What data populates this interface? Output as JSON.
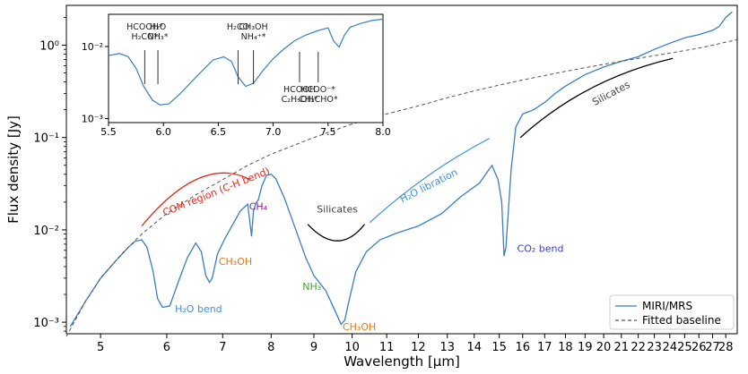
{
  "chart_data": {
    "type": "line",
    "xlabel": "Wavelength [μm]",
    "ylabel": "Flux density [Jy]",
    "xscale": "log",
    "yscale": "log",
    "xlim": [
      4.55,
      28.9
    ],
    "ylim": [
      0.00075,
      2.7
    ],
    "x_ticks": [
      5,
      6,
      7,
      8,
      9,
      10,
      11,
      12,
      13,
      14,
      15,
      16,
      17,
      18,
      19,
      20,
      21,
      22,
      23,
      24,
      25,
      26,
      27,
      28
    ],
    "y_ticks": [
      {
        "value": 0.001,
        "label": "10⁻³"
      },
      {
        "value": 0.01,
        "label": "10⁻²"
      },
      {
        "value": 0.1,
        "label": "10⁻¹"
      },
      {
        "value": 1,
        "label": "10⁰"
      }
    ],
    "legend": {
      "position": "lower-right",
      "entries": [
        {
          "label": "MIRI/MRS",
          "color": "#3a7ebf",
          "style": "solid"
        },
        {
          "label": "Fitted baseline",
          "color": "#555555",
          "style": "dashed"
        }
      ]
    },
    "series": [
      {
        "name": "MIRI/MRS",
        "color": "#3a7ebf",
        "x": [
          4.6,
          4.8,
          5.0,
          5.2,
          5.4,
          5.5,
          5.6,
          5.68,
          5.78,
          5.85,
          5.93,
          6.05,
          6.2,
          6.35,
          6.5,
          6.6,
          6.68,
          6.75,
          6.8,
          6.9,
          7.05,
          7.2,
          7.35,
          7.5,
          7.58,
          7.62,
          7.67,
          7.72,
          7.8,
          7.9,
          8.0,
          8.1,
          8.3,
          8.5,
          8.8,
          9.0,
          9.3,
          9.55,
          9.7,
          9.8,
          9.9,
          10.1,
          10.4,
          10.8,
          11.3,
          12.0,
          12.8,
          13.5,
          14.2,
          14.7,
          14.95,
          15.1,
          15.2,
          15.28,
          15.5,
          15.7,
          16.0,
          16.5,
          17.0,
          17.5,
          18.0,
          19.0,
          20.0,
          21.0,
          22.0,
          23.0,
          24.0,
          25.0,
          26.0,
          27.0,
          27.5,
          28.0,
          28.5
        ],
        "y": [
          0.0009,
          0.0017,
          0.003,
          0.0045,
          0.0065,
          0.0075,
          0.0078,
          0.0065,
          0.0035,
          0.0018,
          0.00145,
          0.0015,
          0.0028,
          0.005,
          0.0072,
          0.0058,
          0.0032,
          0.0027,
          0.003,
          0.0055,
          0.0082,
          0.0115,
          0.016,
          0.019,
          0.0085,
          0.016,
          0.0195,
          0.021,
          0.03,
          0.039,
          0.04,
          0.036,
          0.022,
          0.012,
          0.005,
          0.0032,
          0.0022,
          0.0013,
          0.00095,
          0.00105,
          0.0016,
          0.0035,
          0.0058,
          0.0078,
          0.0092,
          0.011,
          0.015,
          0.023,
          0.032,
          0.05,
          0.035,
          0.02,
          0.0052,
          0.0065,
          0.045,
          0.13,
          0.18,
          0.2,
          0.24,
          0.3,
          0.36,
          0.48,
          0.58,
          0.67,
          0.75,
          0.9,
          1.05,
          1.2,
          1.3,
          1.45,
          1.6,
          2.0,
          2.3
        ]
      },
      {
        "name": "Fitted baseline",
        "color": "#555555",
        "dash": true,
        "x": [
          4.55,
          4.8,
          5.0,
          5.3,
          5.6,
          6.0,
          6.5,
          7.0,
          7.5,
          8.0,
          9.0,
          10.0,
          11.0,
          12.0,
          13.0,
          14.0,
          15.0,
          16.0,
          18.0,
          20.0,
          22.0,
          24.0,
          26.0,
          27.0,
          28.0,
          28.9
        ],
        "y": [
          0.0007,
          0.0017,
          0.003,
          0.0055,
          0.009,
          0.015,
          0.024,
          0.035,
          0.05,
          0.066,
          0.1,
          0.14,
          0.18,
          0.22,
          0.27,
          0.32,
          0.37,
          0.42,
          0.52,
          0.62,
          0.72,
          0.82,
          0.93,
          1.0,
          1.08,
          1.15
        ]
      }
    ],
    "annotations": [
      {
        "text": "H₂O bend",
        "x": 6.55,
        "y": 0.00128,
        "color": "#3c8fde"
      },
      {
        "text": "CH₃OH",
        "x": 7.25,
        "y": 0.0042,
        "color": "#e07a10"
      },
      {
        "text": "CH₄",
        "x": 7.72,
        "y": 0.0165,
        "color": "#8b1a8b"
      },
      {
        "text": "NH₃",
        "x": 8.95,
        "y": 0.00225,
        "color": "#3fa531"
      },
      {
        "text": "CH₃OH",
        "x": 10.2,
        "y": 0.00082,
        "color": "#e07a10"
      },
      {
        "text": "CO₂ bend",
        "x": 16.8,
        "y": 0.0058,
        "color": "#3a3fbf"
      },
      {
        "text": "Silicates",
        "x": 9.6,
        "y": 0.0155,
        "color": "#444444"
      },
      {
        "text": "Silicates",
        "x": 20.5,
        "y": 0.28,
        "color": "#444444"
      },
      {
        "text": "H₂O libration",
        "x": 12.4,
        "y": 0.028,
        "color": "#3c8fde"
      },
      {
        "text": "COM region (C-H  bend)",
        "x": 6.9,
        "y": 0.024,
        "color": "#e0281e"
      }
    ],
    "inset": {
      "xlim": [
        5.5,
        8.0
      ],
      "ylim": [
        0.00088,
        0.028
      ],
      "yscale": "log",
      "x_ticks": [
        5.5,
        6.0,
        6.5,
        7.0,
        7.5,
        8.0
      ],
      "x_tick_labels": [
        "5.5",
        "6.0",
        "6.5",
        "7.0",
        "7.5",
        "8.0"
      ],
      "y_ticks": [
        {
          "value": 0.001,
          "label": "10⁻³"
        },
        {
          "value": 0.01,
          "label": "10⁻²"
        }
      ],
      "x": [
        5.5,
        5.6,
        5.68,
        5.75,
        5.82,
        5.9,
        5.97,
        6.05,
        6.15,
        6.3,
        6.45,
        6.55,
        6.62,
        6.68,
        6.75,
        6.82,
        6.9,
        7.0,
        7.1,
        7.2,
        7.3,
        7.4,
        7.5,
        7.55,
        7.6,
        7.65,
        7.7,
        7.8,
        7.9,
        8.0
      ],
      "y": [
        0.0075,
        0.008,
        0.0072,
        0.005,
        0.0028,
        0.0018,
        0.00155,
        0.0016,
        0.0022,
        0.0038,
        0.0065,
        0.0072,
        0.0062,
        0.0038,
        0.0028,
        0.0031,
        0.0045,
        0.0068,
        0.0093,
        0.0122,
        0.0145,
        0.0165,
        0.0182,
        0.012,
        0.0098,
        0.0145,
        0.0185,
        0.021,
        0.023,
        0.024
      ],
      "markers": [
        {
          "x": 5.83,
          "labels": [
            "HCOOH*",
            "H₂CO*"
          ],
          "pos": "top"
        },
        {
          "x": 5.95,
          "labels": [
            "H₂O",
            "NH₃*"
          ],
          "pos": "top"
        },
        {
          "x": 6.68,
          "labels": [
            "H₂CO"
          ],
          "pos": "top"
        },
        {
          "x": 6.82,
          "labels": [
            "CH₃OH",
            "NH₄⁺*"
          ],
          "pos": "top"
        },
        {
          "x": 7.24,
          "labels": [
            "HCOOH",
            "C₂H₅OH*"
          ],
          "pos": "bottom"
        },
        {
          "x": 7.41,
          "labels": [
            "HCOO⁻*",
            "CH₃CHO*"
          ],
          "pos": "bottom"
        }
      ]
    }
  }
}
